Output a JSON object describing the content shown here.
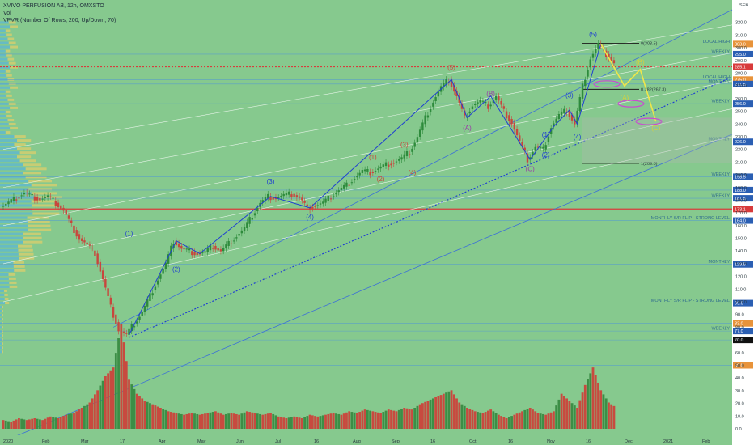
{
  "header": {
    "title": "XVIVO PERFUSION AB, 12h, OMXSTO",
    "vol": "Vol",
    "vpvr": "VPVR (Number Of Rows, 200, Up/Down, 70)"
  },
  "colors": {
    "up": "#2e8b3c",
    "down": "#c8463d",
    "channel": "#3b6fd8",
    "wave": "#1f3fd1",
    "fib": "#1a1a1a",
    "bg": "#86c98e"
  },
  "chart_data": {
    "type": "candlestick",
    "currency": "SEK",
    "ylim": [
      0,
      330
    ],
    "x_ticks": [
      "2020",
      "Feb",
      "Mar",
      "17",
      "Apr",
      "May",
      "Jun",
      "Jul",
      "16",
      "Aug",
      "Sep",
      "16",
      "Oct",
      "16",
      "Nov",
      "16",
      "Dec",
      "2021",
      "Feb"
    ],
    "y_ticks": [
      "320.0",
      "310.0",
      "300.0",
      "290.0",
      "280.0",
      "270.0",
      "260.0",
      "250.0",
      "240.0",
      "230.0",
      "220.0",
      "210.0",
      "200.0",
      "190.0",
      "180.0",
      "170.0",
      "160.0",
      "150.0",
      "140.0",
      "130.0",
      "120.0",
      "110.0",
      "100.0",
      "90.0",
      "80.0",
      "70.0",
      "60.0",
      "50.0",
      "40.0",
      "30.0",
      "20.0",
      "10.0",
      "0.0"
    ],
    "price_path": [
      [
        1,
        175
      ],
      [
        2,
        178
      ],
      [
        3,
        182
      ],
      [
        4,
        186
      ],
      [
        5,
        183
      ],
      [
        6,
        181
      ],
      [
        7,
        183
      ],
      [
        8,
        178
      ],
      [
        9,
        172
      ],
      [
        10,
        160
      ],
      [
        11,
        150
      ],
      [
        12,
        145
      ],
      [
        13,
        138
      ],
      [
        14,
        118
      ],
      [
        15,
        96
      ],
      [
        16,
        78
      ],
      [
        17,
        74
      ],
      [
        18,
        83
      ],
      [
        19,
        92
      ],
      [
        20,
        105
      ],
      [
        21,
        118
      ],
      [
        22,
        130
      ],
      [
        23,
        148
      ],
      [
        24,
        142
      ],
      [
        25,
        140
      ],
      [
        26,
        138
      ],
      [
        27,
        139
      ],
      [
        28,
        144
      ],
      [
        29,
        140
      ],
      [
        30,
        146
      ],
      [
        31,
        152
      ],
      [
        32,
        158
      ],
      [
        33,
        168
      ],
      [
        34,
        178
      ],
      [
        35,
        183
      ],
      [
        36,
        182
      ],
      [
        37,
        184
      ],
      [
        38,
        185
      ],
      [
        39,
        182
      ],
      [
        40,
        174
      ],
      [
        41,
        176
      ],
      [
        42,
        178
      ],
      [
        43,
        183
      ],
      [
        44,
        188
      ],
      [
        45,
        192
      ],
      [
        46,
        198
      ],
      [
        47,
        203
      ],
      [
        48,
        202
      ],
      [
        49,
        205
      ],
      [
        50,
        208
      ],
      [
        51,
        210
      ],
      [
        52,
        213
      ],
      [
        53,
        218
      ],
      [
        54,
        230
      ],
      [
        55,
        245
      ],
      [
        56,
        258
      ],
      [
        57,
        269
      ],
      [
        58,
        275
      ],
      [
        59,
        262
      ],
      [
        60,
        245
      ],
      [
        61,
        255
      ],
      [
        62,
        258
      ],
      [
        63,
        254
      ],
      [
        64,
        262
      ],
      [
        65,
        250
      ],
      [
        66,
        241
      ],
      [
        67,
        226
      ],
      [
        68,
        212
      ],
      [
        69,
        222
      ],
      [
        70,
        220
      ],
      [
        71,
        238
      ],
      [
        72,
        247
      ],
      [
        73,
        251
      ],
      [
        74,
        240
      ],
      [
        75,
        270
      ],
      [
        76,
        292
      ],
      [
        77,
        303
      ],
      [
        78,
        295
      ],
      [
        79,
        288
      ]
    ],
    "volume_path": [
      [
        1,
        5
      ],
      [
        2,
        4
      ],
      [
        3,
        6
      ],
      [
        4,
        5
      ],
      [
        5,
        6
      ],
      [
        6,
        5
      ],
      [
        7,
        7
      ],
      [
        8,
        6
      ],
      [
        9,
        8
      ],
      [
        10,
        9
      ],
      [
        11,
        12
      ],
      [
        12,
        15
      ],
      [
        13,
        22
      ],
      [
        14,
        30
      ],
      [
        15,
        35
      ],
      [
        16,
        60
      ],
      [
        17,
        28
      ],
      [
        18,
        20
      ],
      [
        19,
        16
      ],
      [
        20,
        14
      ],
      [
        21,
        12
      ],
      [
        22,
        10
      ],
      [
        23,
        9
      ],
      [
        24,
        8
      ],
      [
        25,
        9
      ],
      [
        26,
        8
      ],
      [
        27,
        9
      ],
      [
        28,
        10
      ],
      [
        29,
        8
      ],
      [
        30,
        9
      ],
      [
        31,
        8
      ],
      [
        32,
        10
      ],
      [
        33,
        9
      ],
      [
        34,
        8
      ],
      [
        35,
        9
      ],
      [
        36,
        7
      ],
      [
        37,
        6
      ],
      [
        38,
        7
      ],
      [
        39,
        6
      ],
      [
        40,
        8
      ],
      [
        41,
        7
      ],
      [
        42,
        8
      ],
      [
        43,
        9
      ],
      [
        44,
        8
      ],
      [
        45,
        10
      ],
      [
        46,
        9
      ],
      [
        47,
        11
      ],
      [
        48,
        10
      ],
      [
        49,
        9
      ],
      [
        50,
        11
      ],
      [
        51,
        10
      ],
      [
        52,
        12
      ],
      [
        53,
        11
      ],
      [
        54,
        14
      ],
      [
        55,
        16
      ],
      [
        56,
        18
      ],
      [
        57,
        20
      ],
      [
        58,
        22
      ],
      [
        59,
        15
      ],
      [
        60,
        12
      ],
      [
        61,
        10
      ],
      [
        62,
        9
      ],
      [
        63,
        11
      ],
      [
        64,
        8
      ],
      [
        65,
        6
      ],
      [
        66,
        8
      ],
      [
        67,
        10
      ],
      [
        68,
        12
      ],
      [
        69,
        9
      ],
      [
        70,
        8
      ],
      [
        71,
        10
      ],
      [
        72,
        20
      ],
      [
        73,
        16
      ],
      [
        74,
        12
      ],
      [
        75,
        25
      ],
      [
        76,
        35
      ],
      [
        77,
        22
      ],
      [
        78,
        15
      ],
      [
        79,
        12
      ]
    ],
    "levels": [
      {
        "price": 303.0,
        "label": "LOCAL HIGH",
        "tag": "303.0",
        "tag_color": "#e8933a"
      },
      {
        "price": 295.0,
        "label": "WEEKLY",
        "tag": "295.0",
        "tag_color": "#2b5fb3"
      },
      {
        "price": 285.1,
        "label": "",
        "tag": "285.1",
        "tag_color": "#d83b3b"
      },
      {
        "price": 275.0,
        "label": "LOCAL HIGH",
        "tag": "275.0",
        "tag_color": "#e8933a"
      },
      {
        "price": 271.5,
        "label": "MONTHLY",
        "tag": "271.5",
        "tag_color": "#2b5fb3"
      },
      {
        "price": 256.0,
        "label": "WEEKLY",
        "tag": "256.0",
        "tag_color": "#2b5fb3"
      },
      {
        "price": 226.0,
        "label": "MONTHLY",
        "tag": "226.0",
        "tag_color": "#2b5fb3"
      },
      {
        "price": 198.5,
        "label": "WEEKLY",
        "tag": "198.5",
        "tag_color": "#2b5fb3"
      },
      {
        "price": 188.0,
        "label": "",
        "tag": "188.0",
        "tag_color": "#2b5fb3"
      },
      {
        "price": 181.5,
        "label": "WEEKLY",
        "tag": "181.5",
        "tag_color": "#2b5fb3"
      },
      {
        "price": 173.1,
        "label": "",
        "tag": "173.1",
        "tag_color": "#d83b3b"
      },
      {
        "price": 164.0,
        "label": "MONTHLY S/R FLIP - STRONG LEVEL",
        "tag": "164.0",
        "tag_color": "#2b5fb3"
      },
      {
        "price": 129.5,
        "label": "MONTHLY",
        "tag": "129.5",
        "tag_color": "#2b5fb3"
      },
      {
        "price": 99.0,
        "label": "MONTHLY S/R FLIP - STRONG LEVEL",
        "tag": "99.0",
        "tag_color": "#2b5fb3"
      },
      {
        "price": 83.0,
        "label": "",
        "tag": "83.0",
        "tag_color": "#e8933a"
      },
      {
        "price": 77.0,
        "label": "WEEKLY",
        "tag": "77.0",
        "tag_color": "#2b5fb3"
      },
      {
        "price": 70.0,
        "label": "",
        "tag": "70.0",
        "tag_color": "#111111"
      },
      {
        "price": 50.0,
        "label": "",
        "tag": "50.0",
        "tag_color": "#e8933a"
      }
    ],
    "fib": [
      {
        "price": 303.5,
        "label": "0(303.5)"
      },
      {
        "price": 267.3,
        "label": "0.382(267.3)"
      },
      {
        "price": 209.0,
        "label": "1(209.0)"
      }
    ],
    "wave_labels": [
      {
        "t": "(1)",
        "x": 17,
        "y": 152,
        "c": "#1f3fd1"
      },
      {
        "t": "(2)",
        "x": 23,
        "y": 124,
        "c": "#1f3fd1"
      },
      {
        "t": "(3)",
        "x": 35,
        "y": 193,
        "c": "#1f3fd1"
      },
      {
        "t": "(4)",
        "x": 40,
        "y": 165,
        "c": "#1f3fd1"
      },
      {
        "t": "(5)",
        "x": 58,
        "y": 283,
        "c": "#c8463d"
      },
      {
        "t": "(1)",
        "x": 48,
        "y": 212,
        "c": "#c8463d"
      },
      {
        "t": "(2)",
        "x": 49,
        "y": 195,
        "c": "#c8463d"
      },
      {
        "t": "(3)",
        "x": 52,
        "y": 222,
        "c": "#c8463d"
      },
      {
        "t": "(4)",
        "x": 53,
        "y": 200,
        "c": "#c8463d"
      },
      {
        "t": "(A)",
        "x": 60,
        "y": 235,
        "c": "#9a3aa8"
      },
      {
        "t": "(B)",
        "x": 63,
        "y": 262,
        "c": "#9a3aa8"
      },
      {
        "t": "(C)",
        "x": 68,
        "y": 203,
        "c": "#9a3aa8"
      },
      {
        "t": "(1)",
        "x": 70,
        "y": 230,
        "c": "#1f3fd1"
      },
      {
        "t": "(2)",
        "x": 70,
        "y": 214,
        "c": "#1f3fd1"
      },
      {
        "t": "(3)",
        "x": 73,
        "y": 261,
        "c": "#1f3fd1"
      },
      {
        "t": "(4)",
        "x": 74,
        "y": 228,
        "c": "#1f3fd1"
      },
      {
        "t": "(5)",
        "x": 76,
        "y": 309,
        "c": "#1f3fd1"
      },
      {
        "t": "(A)",
        "x": 80,
        "y": 259,
        "c": "#d8d23a"
      },
      {
        "t": "(B)",
        "x": 82,
        "y": 287,
        "c": "#d8d23a"
      },
      {
        "t": "(C)",
        "x": 84,
        "y": 235,
        "c": "#d8d23a"
      }
    ],
    "projection": [
      [
        77,
        303
      ],
      [
        80,
        270
      ],
      [
        82,
        283
      ],
      [
        84,
        242
      ]
    ]
  }
}
